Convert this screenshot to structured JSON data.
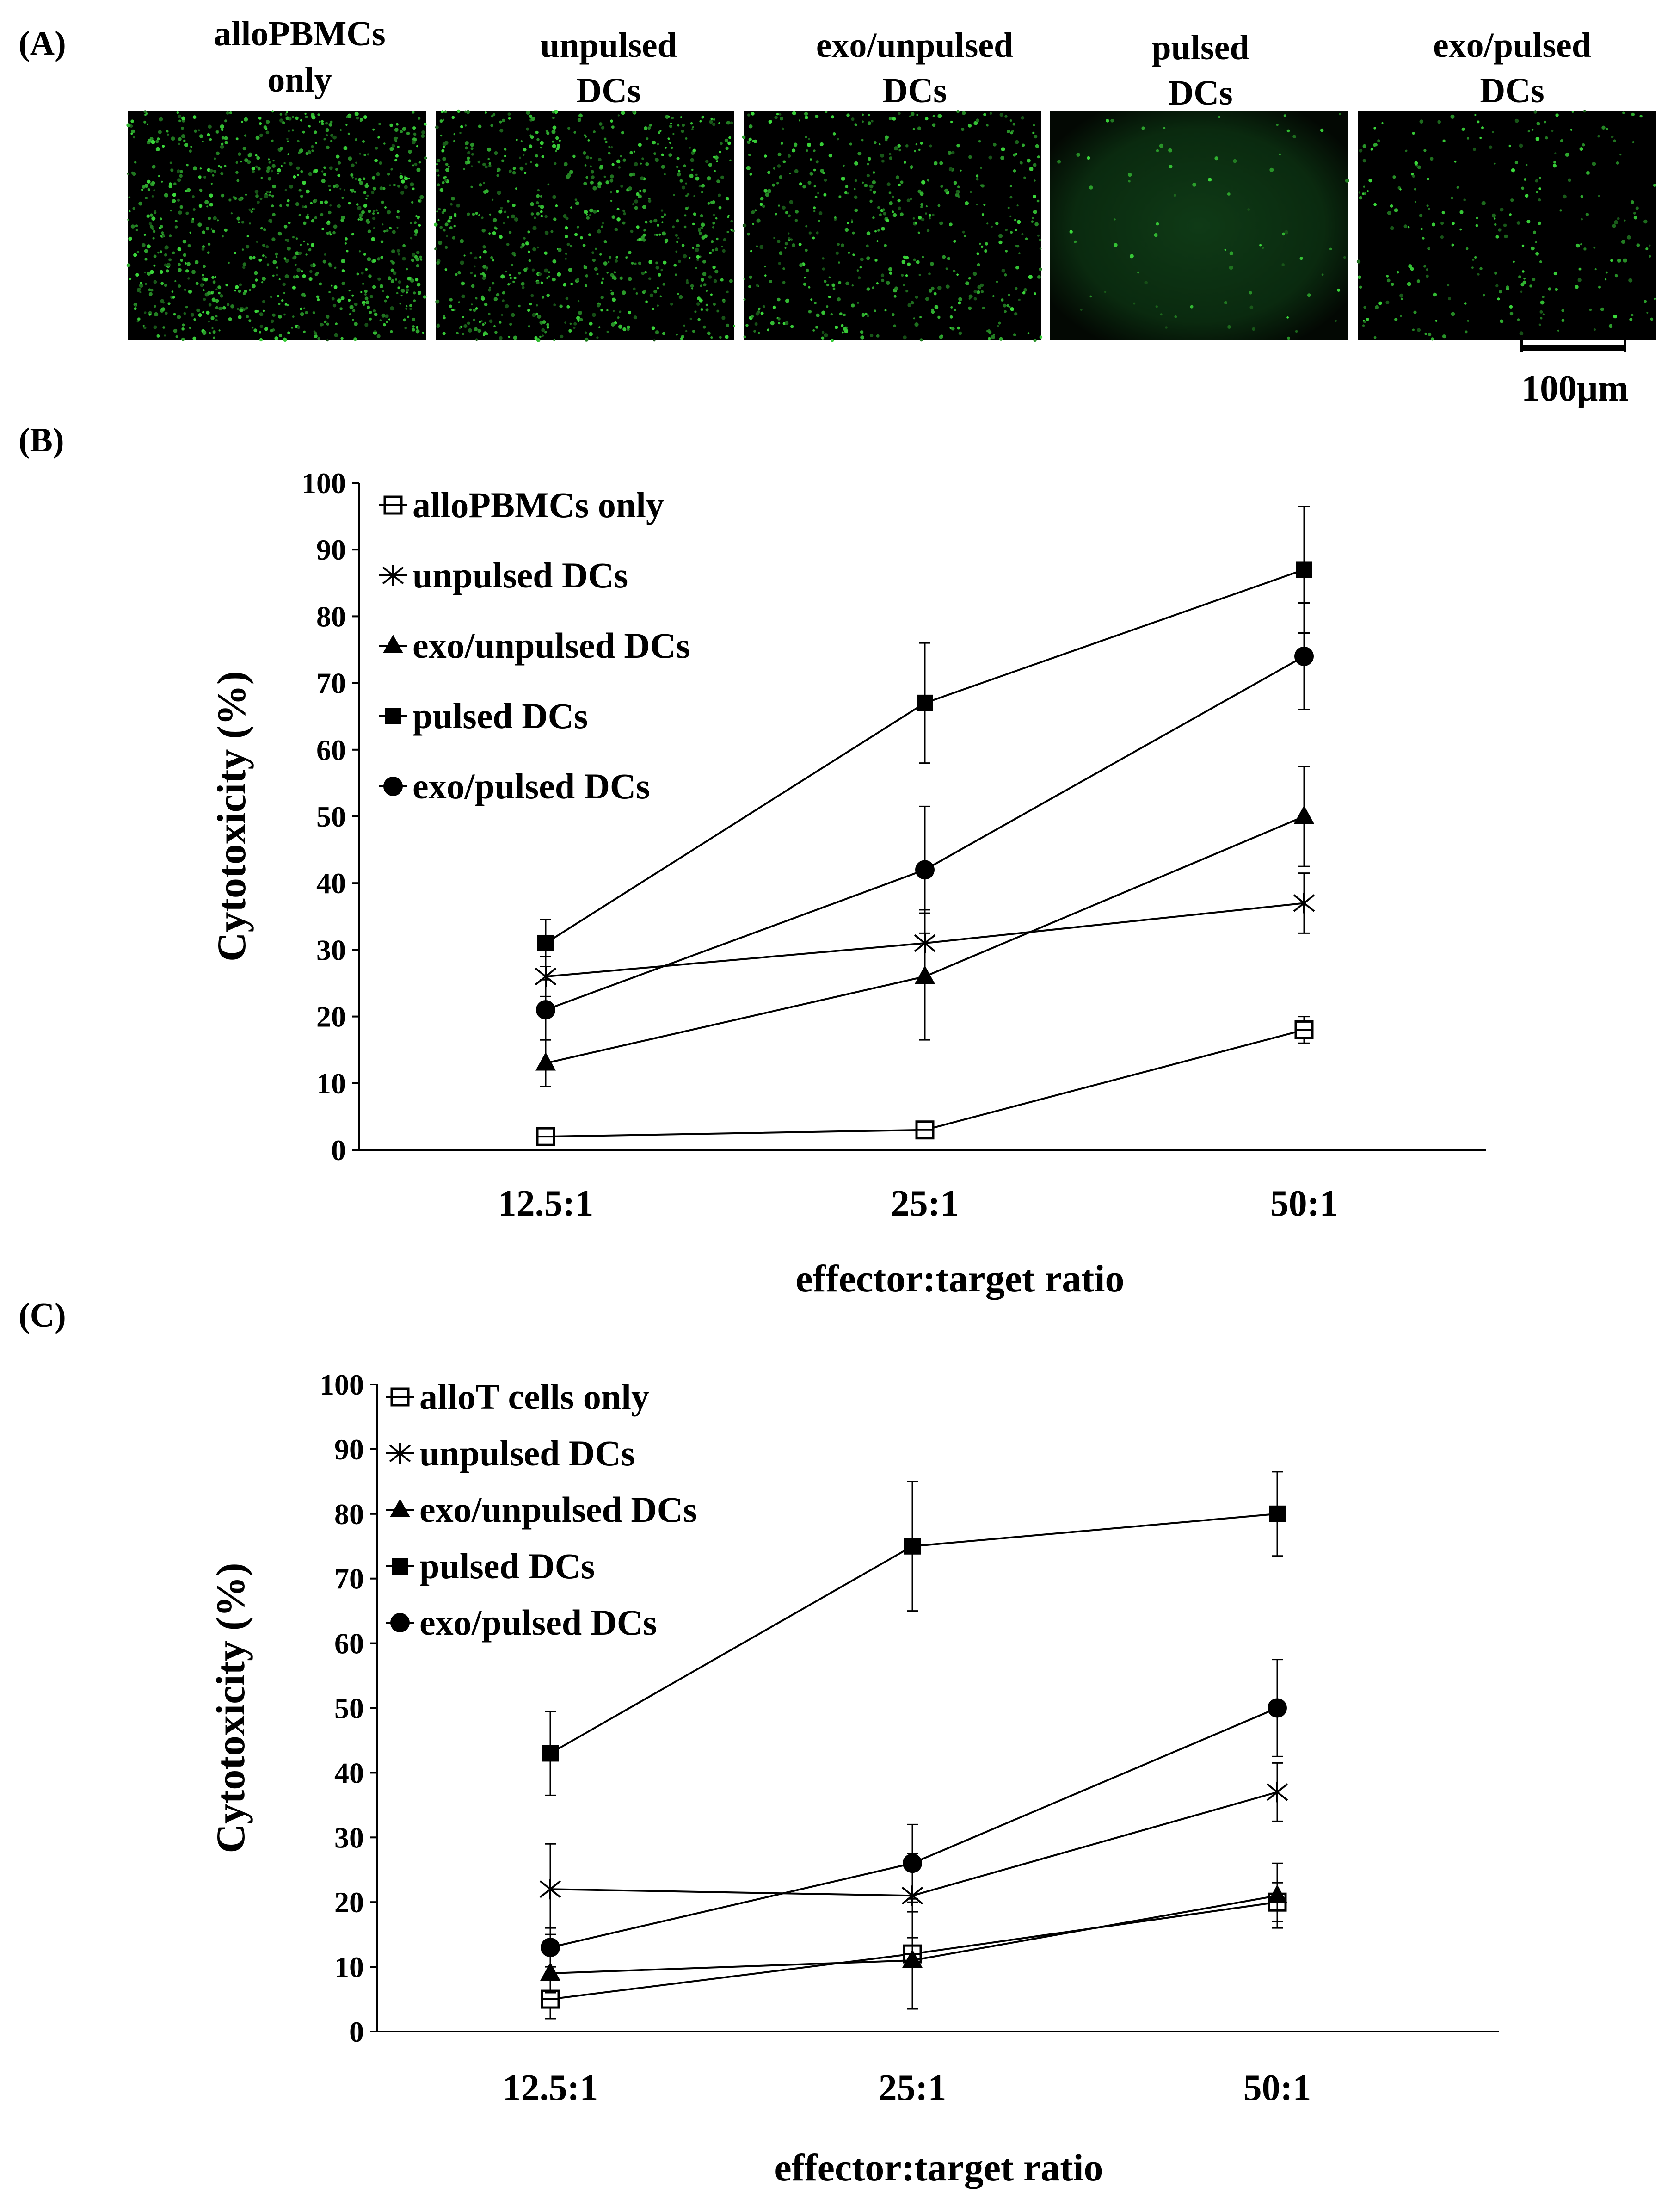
{
  "panel_a": {
    "letter": "(A)",
    "micrograph_titles": [
      [
        "alloPBMCs",
        "only"
      ],
      [
        "unpulsed",
        "DCs"
      ],
      [
        "exo/unpulsed",
        "DCs"
      ],
      [
        "pulsed",
        "DCs"
      ],
      [
        "exo/pulsed",
        "DCs"
      ]
    ],
    "micrograph_dot_density": [
      1.0,
      0.85,
      0.6,
      0.08,
      0.3
    ],
    "scale_bar_label": "100μm"
  },
  "chart_data": [
    {
      "type": "line",
      "panel": "(B)",
      "title": "",
      "xlabel": "effector:target ratio",
      "ylabel": "Cytotoxicity (%)",
      "categories": [
        "12.5:1",
        "25:1",
        "50:1"
      ],
      "ylim": [
        0,
        100
      ],
      "yticks": [
        "0",
        "10",
        "20",
        "30",
        "40",
        "50",
        "60",
        "70",
        "80",
        "90",
        "100"
      ],
      "legend_position": "top-left",
      "grid": false,
      "series": [
        {
          "name": "alloPBMCs only",
          "marker": "open-square",
          "values": [
            2,
            3,
            18
          ],
          "errors": [
            1,
            1,
            2
          ]
        },
        {
          "name": "unpulsed DCs",
          "marker": "star",
          "values": [
            26,
            31,
            37
          ],
          "errors": [
            3,
            5,
            4.5
          ]
        },
        {
          "name": "exo/unpulsed DCs",
          "marker": "triangle",
          "values": [
            13,
            26,
            50
          ],
          "errors": [
            3.5,
            9.5,
            7.5
          ]
        },
        {
          "name": "pulsed DCs",
          "marker": "filled-square",
          "values": [
            31,
            67,
            87
          ],
          "errors": [
            3.5,
            9,
            9.5
          ]
        },
        {
          "name": "exo/pulsed DCs",
          "marker": "circle",
          "values": [
            21,
            42,
            74
          ],
          "errors": [
            4.5,
            9.5,
            8
          ]
        }
      ]
    },
    {
      "type": "line",
      "panel": "(C)",
      "title": "",
      "xlabel": "effector:target ratio",
      "ylabel": "Cytotoxicity (%)",
      "categories": [
        "12.5:1",
        "25:1",
        "50:1"
      ],
      "ylim": [
        0,
        100
      ],
      "yticks": [
        "0",
        "10",
        "20",
        "30",
        "40",
        "50",
        "60",
        "70",
        "80",
        "90",
        "100"
      ],
      "legend_position": "top-left",
      "grid": false,
      "series": [
        {
          "name": "alloT cells only",
          "marker": "open-square",
          "values": [
            5,
            12,
            20
          ],
          "errors": [
            3,
            8.5,
            3
          ]
        },
        {
          "name": "unpulsed DCs",
          "marker": "star",
          "values": [
            22,
            21,
            37
          ],
          "errors": [
            7,
            6.5,
            4.5
          ]
        },
        {
          "name": "exo/unpulsed DCs",
          "marker": "triangle",
          "values": [
            9,
            11,
            21
          ],
          "errors": [
            3,
            7.5,
            5
          ]
        },
        {
          "name": "pulsed DCs",
          "marker": "filled-square",
          "values": [
            43,
            75,
            80
          ],
          "errors": [
            6.5,
            10,
            6.5
          ]
        },
        {
          "name": "exo/pulsed DCs",
          "marker": "circle",
          "values": [
            13,
            26,
            50
          ],
          "errors": [
            3,
            6,
            7.5
          ]
        }
      ]
    }
  ]
}
